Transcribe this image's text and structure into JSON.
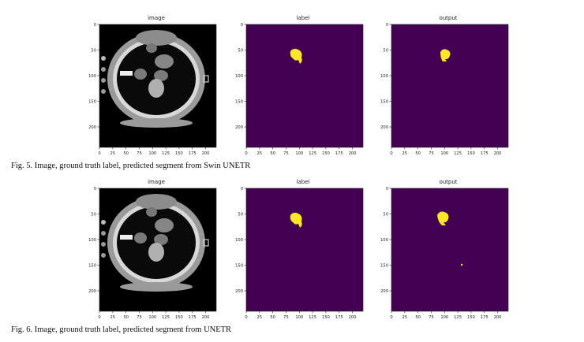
{
  "panel_titles": [
    "image",
    "label",
    "output"
  ],
  "x_ticks": [
    "0",
    "25",
    "50",
    "75",
    "100",
    "125",
    "150",
    "175",
    "200"
  ],
  "y_ticks": [
    "0",
    "50",
    "100",
    "150",
    "200"
  ],
  "colors": {
    "background_purple": "#440154",
    "mask_yellow": "#fde725",
    "ct_black": "#000000",
    "axis": "#222222"
  },
  "figures": [
    {
      "id": "fig5",
      "caption": "Fig. 5.   Image, ground truth label, predicted segment from Swin UNETR",
      "panels": [
        "image",
        "label",
        "output"
      ]
    },
    {
      "id": "fig6",
      "caption": "Fig. 6.   Image, ground truth label, predicted segment from UNETR",
      "panels": [
        "image",
        "label",
        "output"
      ]
    }
  ],
  "chart_data": [
    {
      "type": "heatmap",
      "figure": "Fig. 5",
      "title": "image",
      "content": "axial CT slice (grayscale)",
      "xlim": [
        0,
        220
      ],
      "ylim": [
        240,
        0
      ],
      "xticks": [
        0,
        25,
        50,
        75,
        100,
        125,
        150,
        175,
        200
      ],
      "yticks": [
        0,
        50,
        100,
        150,
        200
      ]
    },
    {
      "type": "heatmap",
      "figure": "Fig. 5",
      "title": "label",
      "content": "ground truth binary mask",
      "mask_center": [
        100,
        65
      ],
      "xlim": [
        0,
        220
      ],
      "ylim": [
        240,
        0
      ],
      "xticks": [
        0,
        25,
        50,
        75,
        100,
        125,
        150,
        175,
        200
      ],
      "yticks": [
        0,
        50,
        100,
        150,
        200
      ]
    },
    {
      "type": "heatmap",
      "figure": "Fig. 5",
      "title": "output",
      "content": "predicted binary mask",
      "mask_center": [
        105,
        62
      ],
      "xlim": [
        0,
        220
      ],
      "ylim": [
        240,
        0
      ],
      "xticks": [
        0,
        25,
        50,
        75,
        100,
        125,
        150,
        175,
        200
      ],
      "yticks": [
        0,
        50,
        100,
        150,
        200
      ]
    },
    {
      "type": "heatmap",
      "figure": "Fig. 6",
      "title": "image",
      "content": "axial CT slice (grayscale)",
      "xlim": [
        0,
        220
      ],
      "ylim": [
        240,
        0
      ],
      "xticks": [
        0,
        25,
        50,
        75,
        100,
        125,
        150,
        175,
        200
      ],
      "yticks": [
        0,
        50,
        100,
        150,
        200
      ]
    },
    {
      "type": "heatmap",
      "figure": "Fig. 6",
      "title": "label",
      "content": "ground truth binary mask",
      "mask_center": [
        100,
        65
      ],
      "xlim": [
        0,
        220
      ],
      "ylim": [
        240,
        0
      ],
      "xticks": [
        0,
        25,
        50,
        75,
        100,
        125,
        150,
        175,
        200
      ],
      "yticks": [
        0,
        50,
        100,
        150,
        200
      ]
    },
    {
      "type": "heatmap",
      "figure": "Fig. 6",
      "title": "output",
      "content": "predicted binary mask with one false-positive speck",
      "mask_center": [
        105,
        62
      ],
      "speck": [
        133,
        150
      ],
      "xlim": [
        0,
        220
      ],
      "ylim": [
        240,
        0
      ],
      "xticks": [
        0,
        25,
        50,
        75,
        100,
        125,
        150,
        175,
        200
      ],
      "yticks": [
        0,
        50,
        100,
        150,
        200
      ]
    }
  ]
}
